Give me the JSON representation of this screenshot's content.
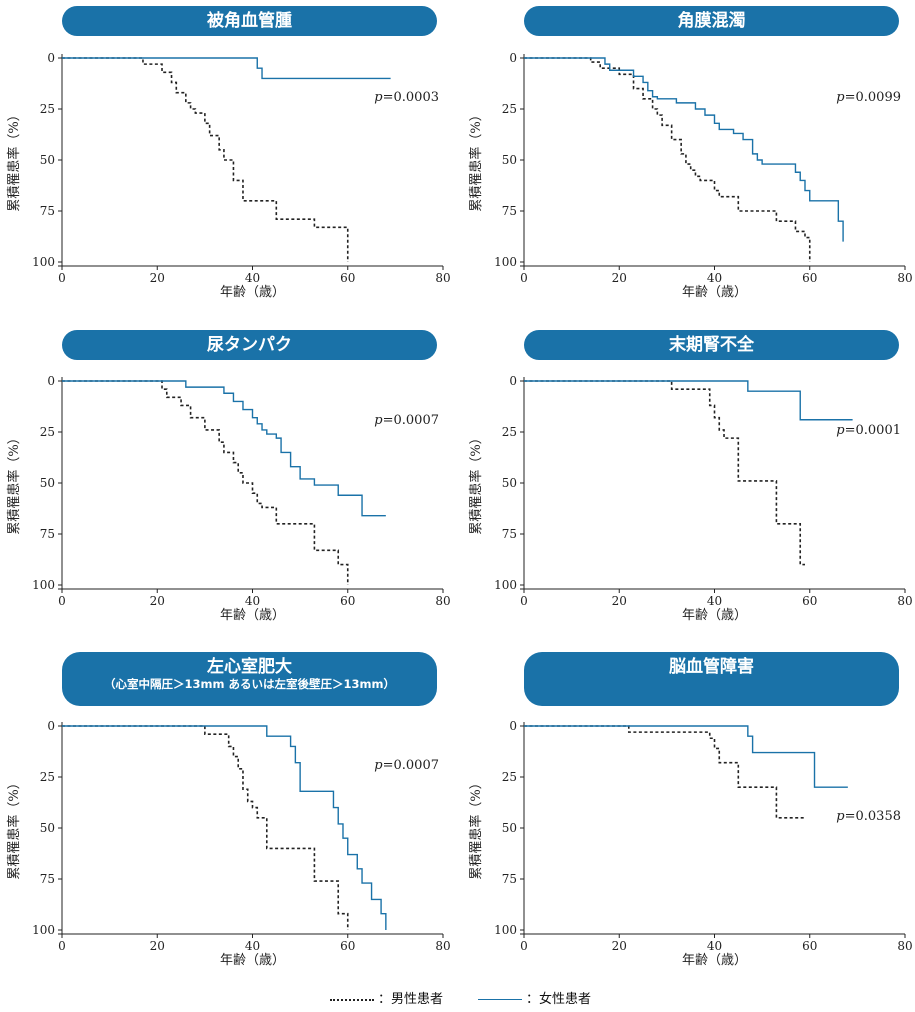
{
  "colors": {
    "male": "#222222",
    "female": "#1a72a8",
    "title_bg": "#1a72a8"
  },
  "legend": {
    "male_label": "：男性患者",
    "female_label": "：女性患者"
  },
  "chart_data": [
    {
      "type": "line",
      "title": "被角血管腫",
      "subtitle": "",
      "xlabel": "年齢（歳）",
      "ylabel": "累積罹患率（%）",
      "xlim": [
        0,
        80
      ],
      "ylim": [
        0,
        100
      ],
      "y_inverted": true,
      "xticks": [
        "0",
        "20",
        "40",
        "60",
        "80"
      ],
      "yticks": [
        "0",
        "25",
        "50",
        "75",
        "100"
      ],
      "p_label": "p",
      "p_value": "=0.0003",
      "series": [
        {
          "name": "男性患者",
          "style": "dotted",
          "x": [
            0,
            17,
            21,
            23,
            24,
            26,
            27,
            28,
            30,
            31,
            33,
            34,
            36,
            38,
            40,
            45,
            53,
            60
          ],
          "y": [
            0,
            3,
            7,
            12,
            17,
            22,
            25,
            27,
            32,
            38,
            45,
            50,
            60,
            70,
            70,
            79,
            83,
            100
          ]
        },
        {
          "name": "女性患者",
          "style": "solid",
          "x": [
            0,
            41,
            42,
            69
          ],
          "y": [
            0,
            5,
            10,
            10
          ]
        }
      ]
    },
    {
      "type": "line",
      "title": "角膜混濁",
      "subtitle": "",
      "xlabel": "年齢（歳）",
      "ylabel": "累積罹患率（%）",
      "xlim": [
        0,
        80
      ],
      "ylim": [
        0,
        100
      ],
      "y_inverted": true,
      "xticks": [
        "0",
        "20",
        "40",
        "60",
        "80"
      ],
      "yticks": [
        "0",
        "25",
        "50",
        "75",
        "100"
      ],
      "p_label": "p",
      "p_value": "=0.0099",
      "series": [
        {
          "name": "男性患者",
          "style": "dotted",
          "x": [
            0,
            14,
            16,
            20,
            23,
            25,
            27,
            28,
            29,
            31,
            33,
            34,
            35,
            36,
            37,
            40,
            41,
            45,
            53,
            57,
            59,
            60
          ],
          "y": [
            0,
            2,
            5,
            8,
            15,
            20,
            25,
            28,
            33,
            40,
            47,
            52,
            55,
            58,
            60,
            65,
            68,
            75,
            80,
            85,
            88,
            100
          ]
        },
        {
          "name": "女性患者",
          "style": "solid",
          "x": [
            0,
            17,
            18,
            23,
            25,
            26,
            27,
            28,
            32,
            36,
            38,
            40,
            41,
            44,
            46,
            48,
            49,
            50,
            57,
            58,
            59,
            60,
            66,
            67
          ],
          "y": [
            0,
            3,
            6,
            9,
            12,
            16,
            19,
            20,
            22,
            25,
            28,
            32,
            35,
            37,
            40,
            47,
            50,
            52,
            56,
            60,
            65,
            70,
            80,
            90
          ]
        }
      ]
    },
    {
      "type": "line",
      "title": "尿タンパク",
      "subtitle": "",
      "xlabel": "年齢（歳）",
      "ylabel": "累積罹患率（%）",
      "xlim": [
        0,
        80
      ],
      "ylim": [
        0,
        100
      ],
      "y_inverted": true,
      "xticks": [
        "0",
        "20",
        "40",
        "60",
        "80"
      ],
      "yticks": [
        "0",
        "25",
        "50",
        "75",
        "100"
      ],
      "p_label": "p",
      "p_value": "=0.0007",
      "series": [
        {
          "name": "男性患者",
          "style": "dotted",
          "x": [
            0,
            21,
            22,
            25,
            27,
            30,
            33,
            34,
            36,
            37,
            38,
            40,
            41,
            42,
            45,
            53,
            58,
            60
          ],
          "y": [
            0,
            4,
            8,
            12,
            18,
            24,
            30,
            35,
            40,
            45,
            50,
            55,
            60,
            62,
            70,
            83,
            90,
            100
          ]
        },
        {
          "name": "女性患者",
          "style": "solid",
          "x": [
            0,
            26,
            34,
            36,
            38,
            40,
            41,
            42,
            43,
            45,
            46,
            48,
            50,
            53,
            58,
            63,
            68
          ],
          "y": [
            0,
            3,
            6,
            10,
            14,
            18,
            21,
            24,
            26,
            28,
            35,
            42,
            48,
            51,
            56,
            66,
            66
          ]
        }
      ]
    },
    {
      "type": "line",
      "title": "末期腎不全",
      "subtitle": "",
      "xlabel": "年齢（歳）",
      "ylabel": "累積罹患率（%）",
      "xlim": [
        0,
        80
      ],
      "ylim": [
        0,
        100
      ],
      "y_inverted": true,
      "xticks": [
        "0",
        "20",
        "40",
        "60",
        "80"
      ],
      "yticks": [
        "0",
        "25",
        "50",
        "75",
        "100"
      ],
      "p_label": "p",
      "p_value": "=0.0001",
      "series": [
        {
          "name": "男性患者",
          "style": "dotted",
          "x": [
            0,
            31,
            39,
            40,
            41,
            42,
            45,
            53,
            58,
            59
          ],
          "y": [
            0,
            4,
            12,
            18,
            24,
            28,
            49,
            70,
            90,
            90
          ]
        },
        {
          "name": "女性患者",
          "style": "solid",
          "x": [
            0,
            47,
            58,
            69
          ],
          "y": [
            0,
            5,
            19,
            19
          ]
        }
      ]
    },
    {
      "type": "line",
      "title": "左心室肥大",
      "subtitle": "（心室中隔圧＞13mm あるいは左室後壁圧＞13mm）",
      "xlabel": "年齢（歳）",
      "ylabel": "累積罹患率（%）",
      "xlim": [
        0,
        80
      ],
      "ylim": [
        0,
        100
      ],
      "y_inverted": true,
      "xticks": [
        "0",
        "20",
        "40",
        "60",
        "80"
      ],
      "yticks": [
        "0",
        "25",
        "50",
        "75",
        "100"
      ],
      "p_label": "p",
      "p_value": "=0.0007",
      "series": [
        {
          "name": "男性患者",
          "style": "dotted",
          "x": [
            0,
            30,
            35,
            36,
            37,
            38,
            39,
            40,
            41,
            43,
            53,
            58,
            60
          ],
          "y": [
            0,
            4,
            10,
            15,
            21,
            31,
            37,
            40,
            45,
            60,
            76,
            92,
            100
          ]
        },
        {
          "name": "女性患者",
          "style": "solid",
          "x": [
            0,
            43,
            48,
            49,
            50,
            57,
            58,
            59,
            60,
            62,
            63,
            65,
            67,
            68
          ],
          "y": [
            0,
            5,
            10,
            18,
            32,
            40,
            48,
            55,
            63,
            70,
            77,
            85,
            92,
            100
          ]
        }
      ]
    },
    {
      "type": "line",
      "title": "脳血管障害",
      "subtitle": "",
      "xlabel": "年齢（歳）",
      "ylabel": "累積罹患率（%）",
      "xlim": [
        0,
        80
      ],
      "ylim": [
        0,
        100
      ],
      "y_inverted": true,
      "xticks": [
        "0",
        "20",
        "40",
        "60",
        "80"
      ],
      "yticks": [
        "0",
        "25",
        "50",
        "75",
        "100"
      ],
      "p_label": "p",
      "p_value": "=0.0358",
      "series": [
        {
          "name": "男性患者",
          "style": "dotted",
          "x": [
            0,
            22,
            39,
            40,
            41,
            45,
            53,
            59
          ],
          "y": [
            0,
            3,
            6,
            11,
            18,
            30,
            45,
            45
          ]
        },
        {
          "name": "女性患者",
          "style": "solid",
          "x": [
            0,
            47,
            48,
            61,
            68
          ],
          "y": [
            0,
            5,
            13,
            30,
            30
          ]
        }
      ]
    }
  ]
}
